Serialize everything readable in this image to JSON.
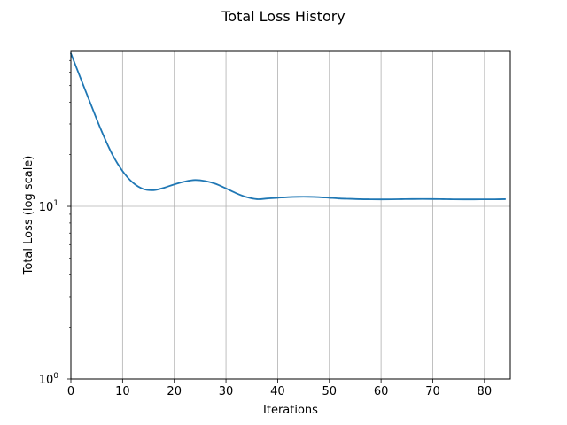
{
  "chart_data": {
    "type": "line",
    "title": "Total Loss History",
    "xlabel": "Iterations",
    "ylabel": "Total Loss (log scale)",
    "yscale": "log",
    "xlim": [
      0,
      85
    ],
    "ylim": [
      1,
      79
    ],
    "grid": true,
    "x_ticks": [
      0,
      10,
      20,
      30,
      40,
      50,
      60,
      70,
      80
    ],
    "y_ticks": [
      {
        "value": 1,
        "base": "10",
        "exp": "0"
      },
      {
        "value": 10,
        "base": "10",
        "exp": "1"
      }
    ],
    "line_color": "#1f77b4",
    "grid_color": "#b0b0b0",
    "series": [
      {
        "x": [
          0,
          2,
          4,
          6,
          8,
          10,
          12,
          14,
          16,
          18,
          20,
          22,
          24,
          26,
          28,
          30,
          32,
          34,
          36,
          38,
          40,
          42,
          44,
          46,
          48,
          50,
          52,
          54,
          56,
          58,
          60,
          62,
          64,
          66,
          68,
          70,
          72,
          74,
          76,
          78,
          80,
          82,
          84
        ],
        "y": [
          77,
          54,
          38,
          27,
          20,
          16,
          13.7,
          12.6,
          12.4,
          12.8,
          13.4,
          13.9,
          14.2,
          14.0,
          13.5,
          12.7,
          11.9,
          11.3,
          11.0,
          11.1,
          11.2,
          11.3,
          11.35,
          11.35,
          11.3,
          11.2,
          11.1,
          11.05,
          11.0,
          10.98,
          10.97,
          10.98,
          11.0,
          11.02,
          11.03,
          11.02,
          11.0,
          10.98,
          10.97,
          10.97,
          10.98,
          10.98,
          11.0
        ]
      }
    ]
  }
}
